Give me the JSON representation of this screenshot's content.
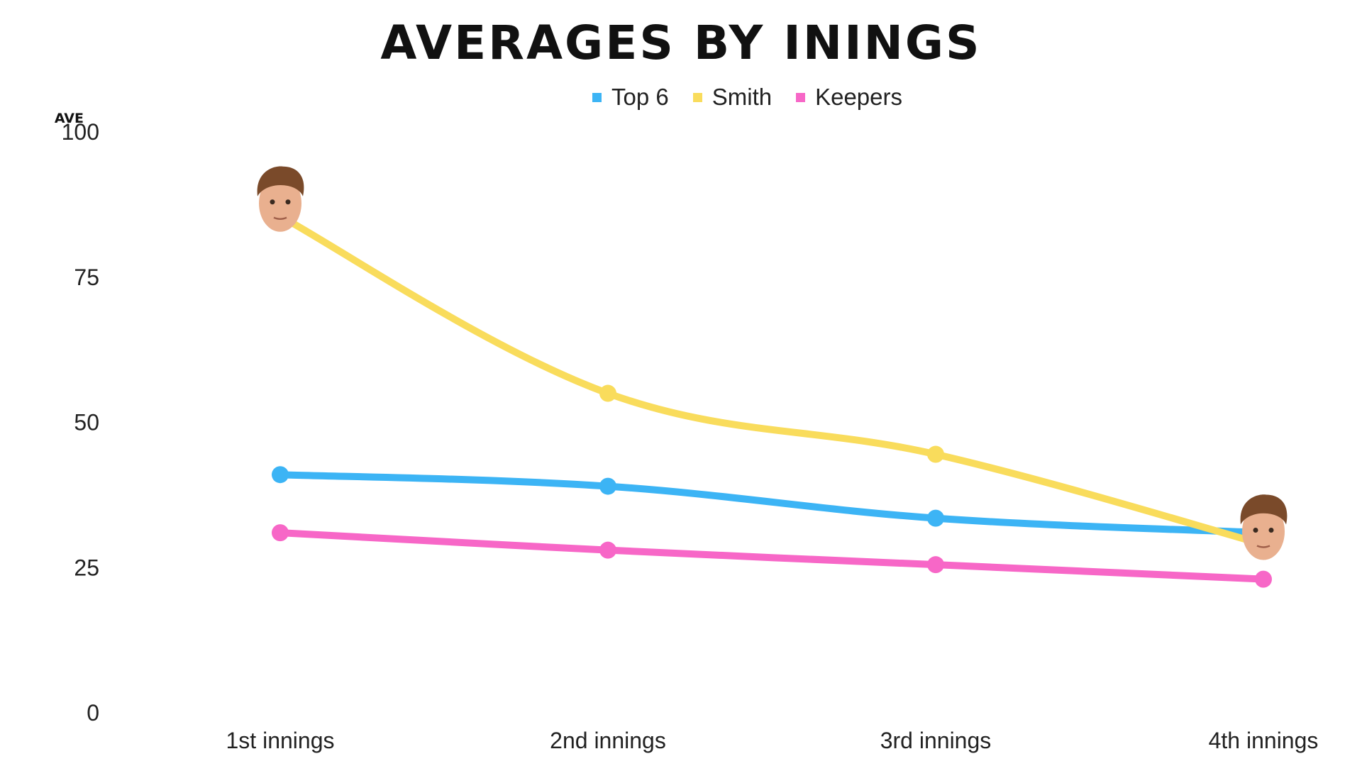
{
  "chart_data": {
    "type": "line",
    "title": "AVERAGES BY ININGS",
    "ylabel": "AVE",
    "xlabel": "",
    "categories": [
      "1st innings",
      "2nd innings",
      "3rd innings",
      "4th innings"
    ],
    "ylim": [
      0,
      100
    ],
    "yticks": [
      0,
      25,
      50,
      75,
      100
    ],
    "grid": false,
    "legend_position": "top",
    "series": [
      {
        "name": "Top 6",
        "color": "#3cb4f5",
        "values": [
          41,
          39,
          33.5,
          31
        ]
      },
      {
        "name": "Smith",
        "color": "#f9dc5c",
        "values": [
          85.5,
          55,
          44.5,
          29
        ]
      },
      {
        "name": "Keepers",
        "color": "#f767c7",
        "values": [
          31,
          28,
          25.5,
          23
        ]
      }
    ],
    "annotations": [
      {
        "type": "player-face-icon",
        "series": "Smith",
        "category": "1st innings"
      },
      {
        "type": "player-face-icon",
        "series": "Smith",
        "category": "4th innings"
      }
    ]
  }
}
